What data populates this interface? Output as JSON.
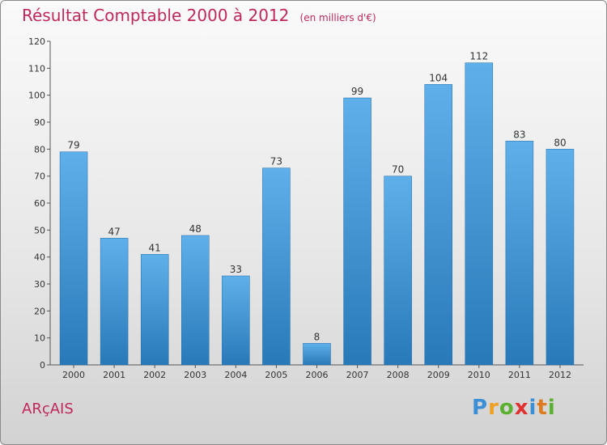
{
  "chart_data": {
    "type": "bar",
    "title": "Résultat Comptable 2000 à 2012",
    "subtitle": "(en milliers d'€)",
    "categories": [
      "2000",
      "2001",
      "2002",
      "2003",
      "2004",
      "2005",
      "2006",
      "2007",
      "2008",
      "2009",
      "2010",
      "2011",
      "2012"
    ],
    "values": [
      79,
      47,
      41,
      48,
      33,
      73,
      8,
      99,
      70,
      104,
      112,
      83,
      80
    ],
    "xlabel": "",
    "ylabel": "",
    "ylim": [
      0,
      120
    ],
    "yticks": [
      0,
      10,
      20,
      30,
      40,
      50,
      60,
      70,
      80,
      90,
      100,
      110,
      120
    ],
    "grid": false,
    "colors": {
      "bar_top": "#5fb0ea",
      "bar_bottom": "#2879b8",
      "title": "#c0285a"
    }
  },
  "commune_name": "ARçAIS",
  "logo": {
    "letters": [
      "P",
      "r",
      "o",
      "x",
      "i",
      "t",
      "i"
    ],
    "colors": [
      "#3a8fd6",
      "#f0a020",
      "#5cb030",
      "#e03030",
      "#3a8fd6",
      "#e07a20",
      "#5cb030"
    ]
  }
}
